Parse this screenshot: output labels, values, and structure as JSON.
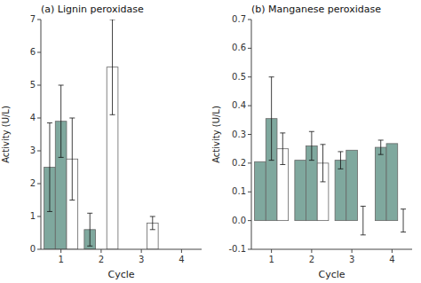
{
  "chart_data": [
    {
      "type": "bar",
      "title": "(a) Lignin peroxidase",
      "xlabel": "Cycle",
      "ylabel": "Activity (U/L)",
      "categories": [
        "1",
        "2",
        "3",
        "4"
      ],
      "series": [
        {
          "color": "#7fa89e",
          "values": [
            2.5,
            0.6,
            0.0,
            0.0
          ],
          "errors": [
            1.35,
            0.5,
            0.0,
            0.0
          ]
        },
        {
          "color": "#7fa89e",
          "values": [
            3.9,
            0.0,
            0.0,
            0.0
          ],
          "errors": [
            1.1,
            0.0,
            0.0,
            0.0
          ]
        },
        {
          "color": "white",
          "values": [
            2.75,
            5.55,
            0.8,
            0.0
          ],
          "errors": [
            1.25,
            1.45,
            0.2,
            0.0
          ]
        }
      ],
      "ylim": [
        0,
        7
      ],
      "yticks": [
        0,
        1,
        2,
        3,
        4,
        5,
        6,
        7
      ],
      "grid": false
    },
    {
      "type": "bar",
      "title": "(b) Manganese peroxidase",
      "xlabel": "Cycle",
      "ylabel": "Activity (U/L)",
      "categories": [
        "1",
        "2",
        "3",
        "4"
      ],
      "series": [
        {
          "color": "#7fa89e",
          "values": [
            0.205,
            0.21,
            0.21,
            0.255
          ],
          "errors": [
            0.0,
            0.0,
            0.03,
            0.025
          ]
        },
        {
          "color": "#7fa89e",
          "values": [
            0.355,
            0.26,
            0.245,
            0.268
          ],
          "errors": [
            0.145,
            0.05,
            0.0,
            0.0
          ]
        },
        {
          "color": "white",
          "values": [
            0.25,
            0.2,
            0.0,
            0.0
          ],
          "errors": [
            0.055,
            0.065,
            0.05,
            0.04
          ]
        }
      ],
      "ylim": [
        -0.1,
        0.7
      ],
      "yticks": [
        -0.1,
        {
          "value": 0.0,
          "label": "0.0"
        },
        0.1,
        0.2,
        0.3,
        0.4,
        0.5,
        0.6,
        0.7
      ],
      "grid": false
    }
  ]
}
